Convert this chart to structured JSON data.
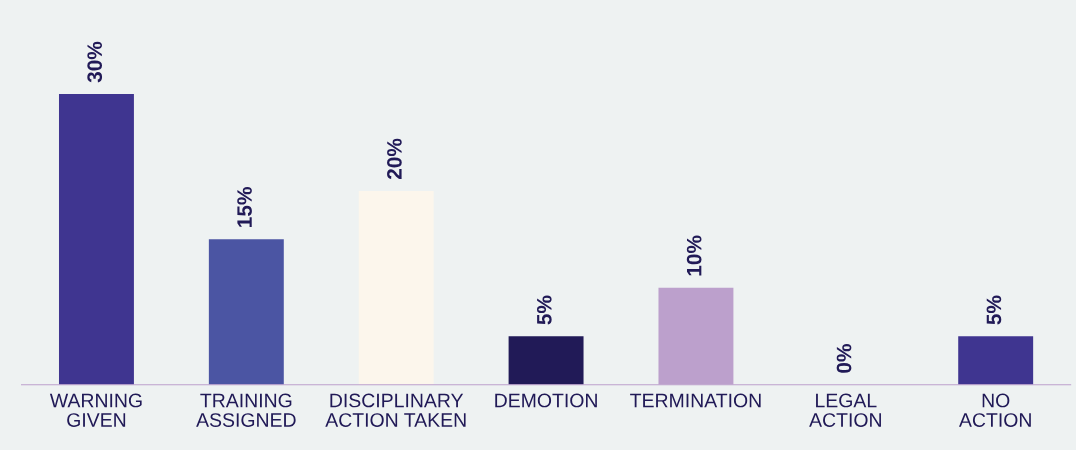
{
  "chart_data": {
    "type": "bar",
    "categories": [
      "WARNING\nGIVEN",
      "TRAINING\nASSIGNED",
      "DISCIPLINARY\nACTION TAKEN",
      "DEMOTION",
      "TERMINATION",
      "LEGAL\nACTION",
      "NO\nACTION"
    ],
    "values": [
      30,
      15,
      20,
      5,
      10,
      0,
      5
    ],
    "colors": [
      "#3f3590",
      "#4b55a3",
      "#fcf6ec",
      "#211a57",
      "#bca0cc",
      null,
      "#3f3590"
    ],
    "value_labels": [
      "30%",
      "15%",
      "20%",
      "5%",
      "10%",
      "0%",
      "5%"
    ],
    "tick_labels": "x",
    "grid": false,
    "legend": false
  }
}
